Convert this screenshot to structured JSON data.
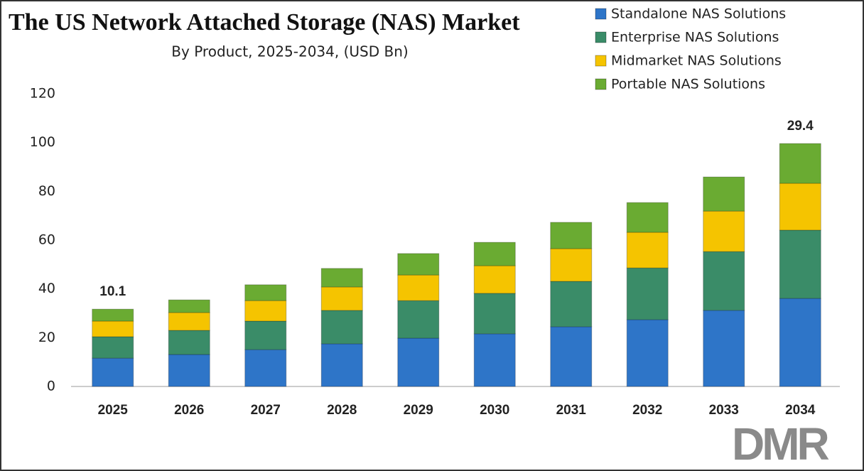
{
  "chart_data": {
    "type": "stacked_bar",
    "title": "The US Network Attached Storage (NAS) Market",
    "subtitle": "By Product, 2025-2034, (USD Bn)",
    "categories": [
      "2025",
      "2026",
      "2027",
      "2028",
      "2029",
      "2030",
      "2031",
      "2032",
      "2033",
      "2034"
    ],
    "series": [
      {
        "name": "Standalone NAS Solutions",
        "color": "#2e75c8",
        "values": [
          11.6,
          13.1,
          15.1,
          17.5,
          19.8,
          21.6,
          24.5,
          27.4,
          31.2,
          36.1
        ]
      },
      {
        "name": "Enterprise NAS Solutions",
        "color": "#3a8c68",
        "values": [
          8.8,
          9.9,
          11.7,
          13.7,
          15.4,
          16.6,
          18.6,
          21.2,
          24.1,
          28.0
        ]
      },
      {
        "name": "Midmarket NAS Solutions",
        "color": "#f5c400",
        "values": [
          6.4,
          7.3,
          8.4,
          9.6,
          10.5,
          11.3,
          13.4,
          14.6,
          16.6,
          19.2
        ]
      },
      {
        "name": "Portable NAS Solutions",
        "color": "#6aab32",
        "values": [
          4.9,
          5.2,
          6.5,
          7.6,
          8.8,
          9.6,
          10.8,
          12.2,
          14.0,
          16.3
        ]
      }
    ],
    "annotations": [
      {
        "x": "2025",
        "text": "10.1"
      },
      {
        "x": "2034",
        "text": "29.4"
      }
    ],
    "ylim": [
      0,
      120
    ],
    "yticks": [
      0,
      20,
      40,
      60,
      80,
      100,
      120
    ],
    "grid": false,
    "legend": "top-right",
    "logo": "DMR"
  }
}
